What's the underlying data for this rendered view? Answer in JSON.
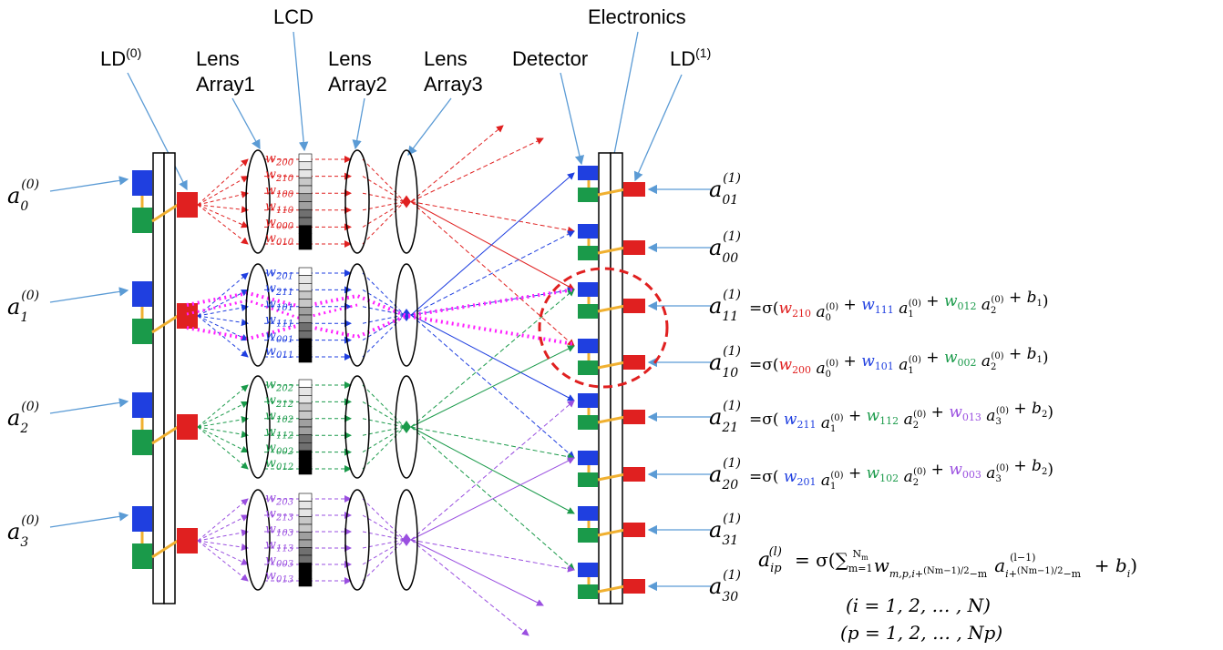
{
  "colors": {
    "red": "#e02020",
    "blue": "#1f3fe0",
    "green": "#1a9a4a",
    "purple": "#9a4fe0",
    "magenta": "#ff20ff",
    "orange": "#f0b030",
    "dashedCircle": "#e02020"
  },
  "labels": {
    "lcd": "LCD",
    "electronics": "Electronics",
    "ld0_base": "LD",
    "ld0_sup": "(0)",
    "lens1_a": "Lens",
    "lens1_b": "Array1",
    "lens2_a": "Lens",
    "lens2_b": "Array2",
    "lens3_a": "Lens",
    "lens3_b": "Array3",
    "detector": "Detector",
    "ld1_base": "LD",
    "ld1_sup": "(1)"
  },
  "inputs": [
    {
      "base": "a",
      "sub": "0",
      "sup": "(0)"
    },
    {
      "base": "a",
      "sub": "1",
      "sup": "(0)"
    },
    {
      "base": "a",
      "sub": "2",
      "sup": "(0)"
    },
    {
      "base": "a",
      "sub": "3",
      "sup": "(0)"
    }
  ],
  "weight_groups": [
    {
      "color": "red",
      "labels": [
        "w200",
        "w210",
        "w100",
        "w110",
        "w000",
        "w010"
      ]
    },
    {
      "color": "blue",
      "labels": [
        "w201",
        "w211",
        "w101",
        "w111",
        "w001",
        "w011"
      ]
    },
    {
      "color": "green",
      "labels": [
        "w202",
        "w212",
        "w102",
        "w112",
        "w002",
        "w012"
      ]
    },
    {
      "color": "purple",
      "labels": [
        "w203",
        "w213",
        "w103",
        "w113",
        "w003",
        "w013"
      ]
    }
  ],
  "outputs": [
    {
      "sub": "01",
      "sup": "(1)"
    },
    {
      "sub": "00",
      "sup": "(1)"
    },
    {
      "sub": "11",
      "sup": "(1)",
      "eq": [
        [
          "σ(",
          "k"
        ],
        [
          "w210",
          "red"
        ],
        [
          " a0(0) + ",
          "k"
        ],
        [
          "w111",
          "blue"
        ],
        [
          " a1(0) + ",
          "k"
        ],
        [
          "w012",
          "green"
        ],
        [
          " a2(0) + b1)",
          "k"
        ]
      ]
    },
    {
      "sub": "10",
      "sup": "(1)",
      "eq": [
        [
          "σ(",
          "k"
        ],
        [
          "w200",
          "red"
        ],
        [
          " a0(0) + ",
          "k"
        ],
        [
          "w101",
          "blue"
        ],
        [
          " a1(0) + ",
          "k"
        ],
        [
          "w002",
          "green"
        ],
        [
          " a2(0) + b1)",
          "k"
        ]
      ]
    },
    {
      "sub": "21",
      "sup": "(1)",
      "eq": [
        [
          "σ( ",
          "k"
        ],
        [
          "w211",
          "blue"
        ],
        [
          " a1(0) + ",
          "k"
        ],
        [
          "w112",
          "green"
        ],
        [
          " a2(0) + ",
          "k"
        ],
        [
          "w013",
          "purple"
        ],
        [
          " a3(0) + b2)",
          "k"
        ]
      ]
    },
    {
      "sub": "20",
      "sup": "(1)",
      "eq": [
        [
          "σ( ",
          "k"
        ],
        [
          "w201",
          "blue"
        ],
        [
          " a1(0) + ",
          "k"
        ],
        [
          "w102",
          "green"
        ],
        [
          " a2(0) + ",
          "k"
        ],
        [
          "w003",
          "purple"
        ],
        [
          " a3(0) + b2)",
          "k"
        ]
      ]
    },
    {
      "sub": "31",
      "sup": "(1)"
    },
    {
      "sub": "30",
      "sup": "(1)"
    }
  ],
  "general_formula": {
    "lhs_base": "a",
    "lhs_sub": "ip",
    "lhs_sup": "(l)",
    "rhs": "= σ(∑ w a + b",
    "range_i": "(i = 1, 2, … , N)",
    "range_p": "(p = 1, 2, … , Np)"
  }
}
